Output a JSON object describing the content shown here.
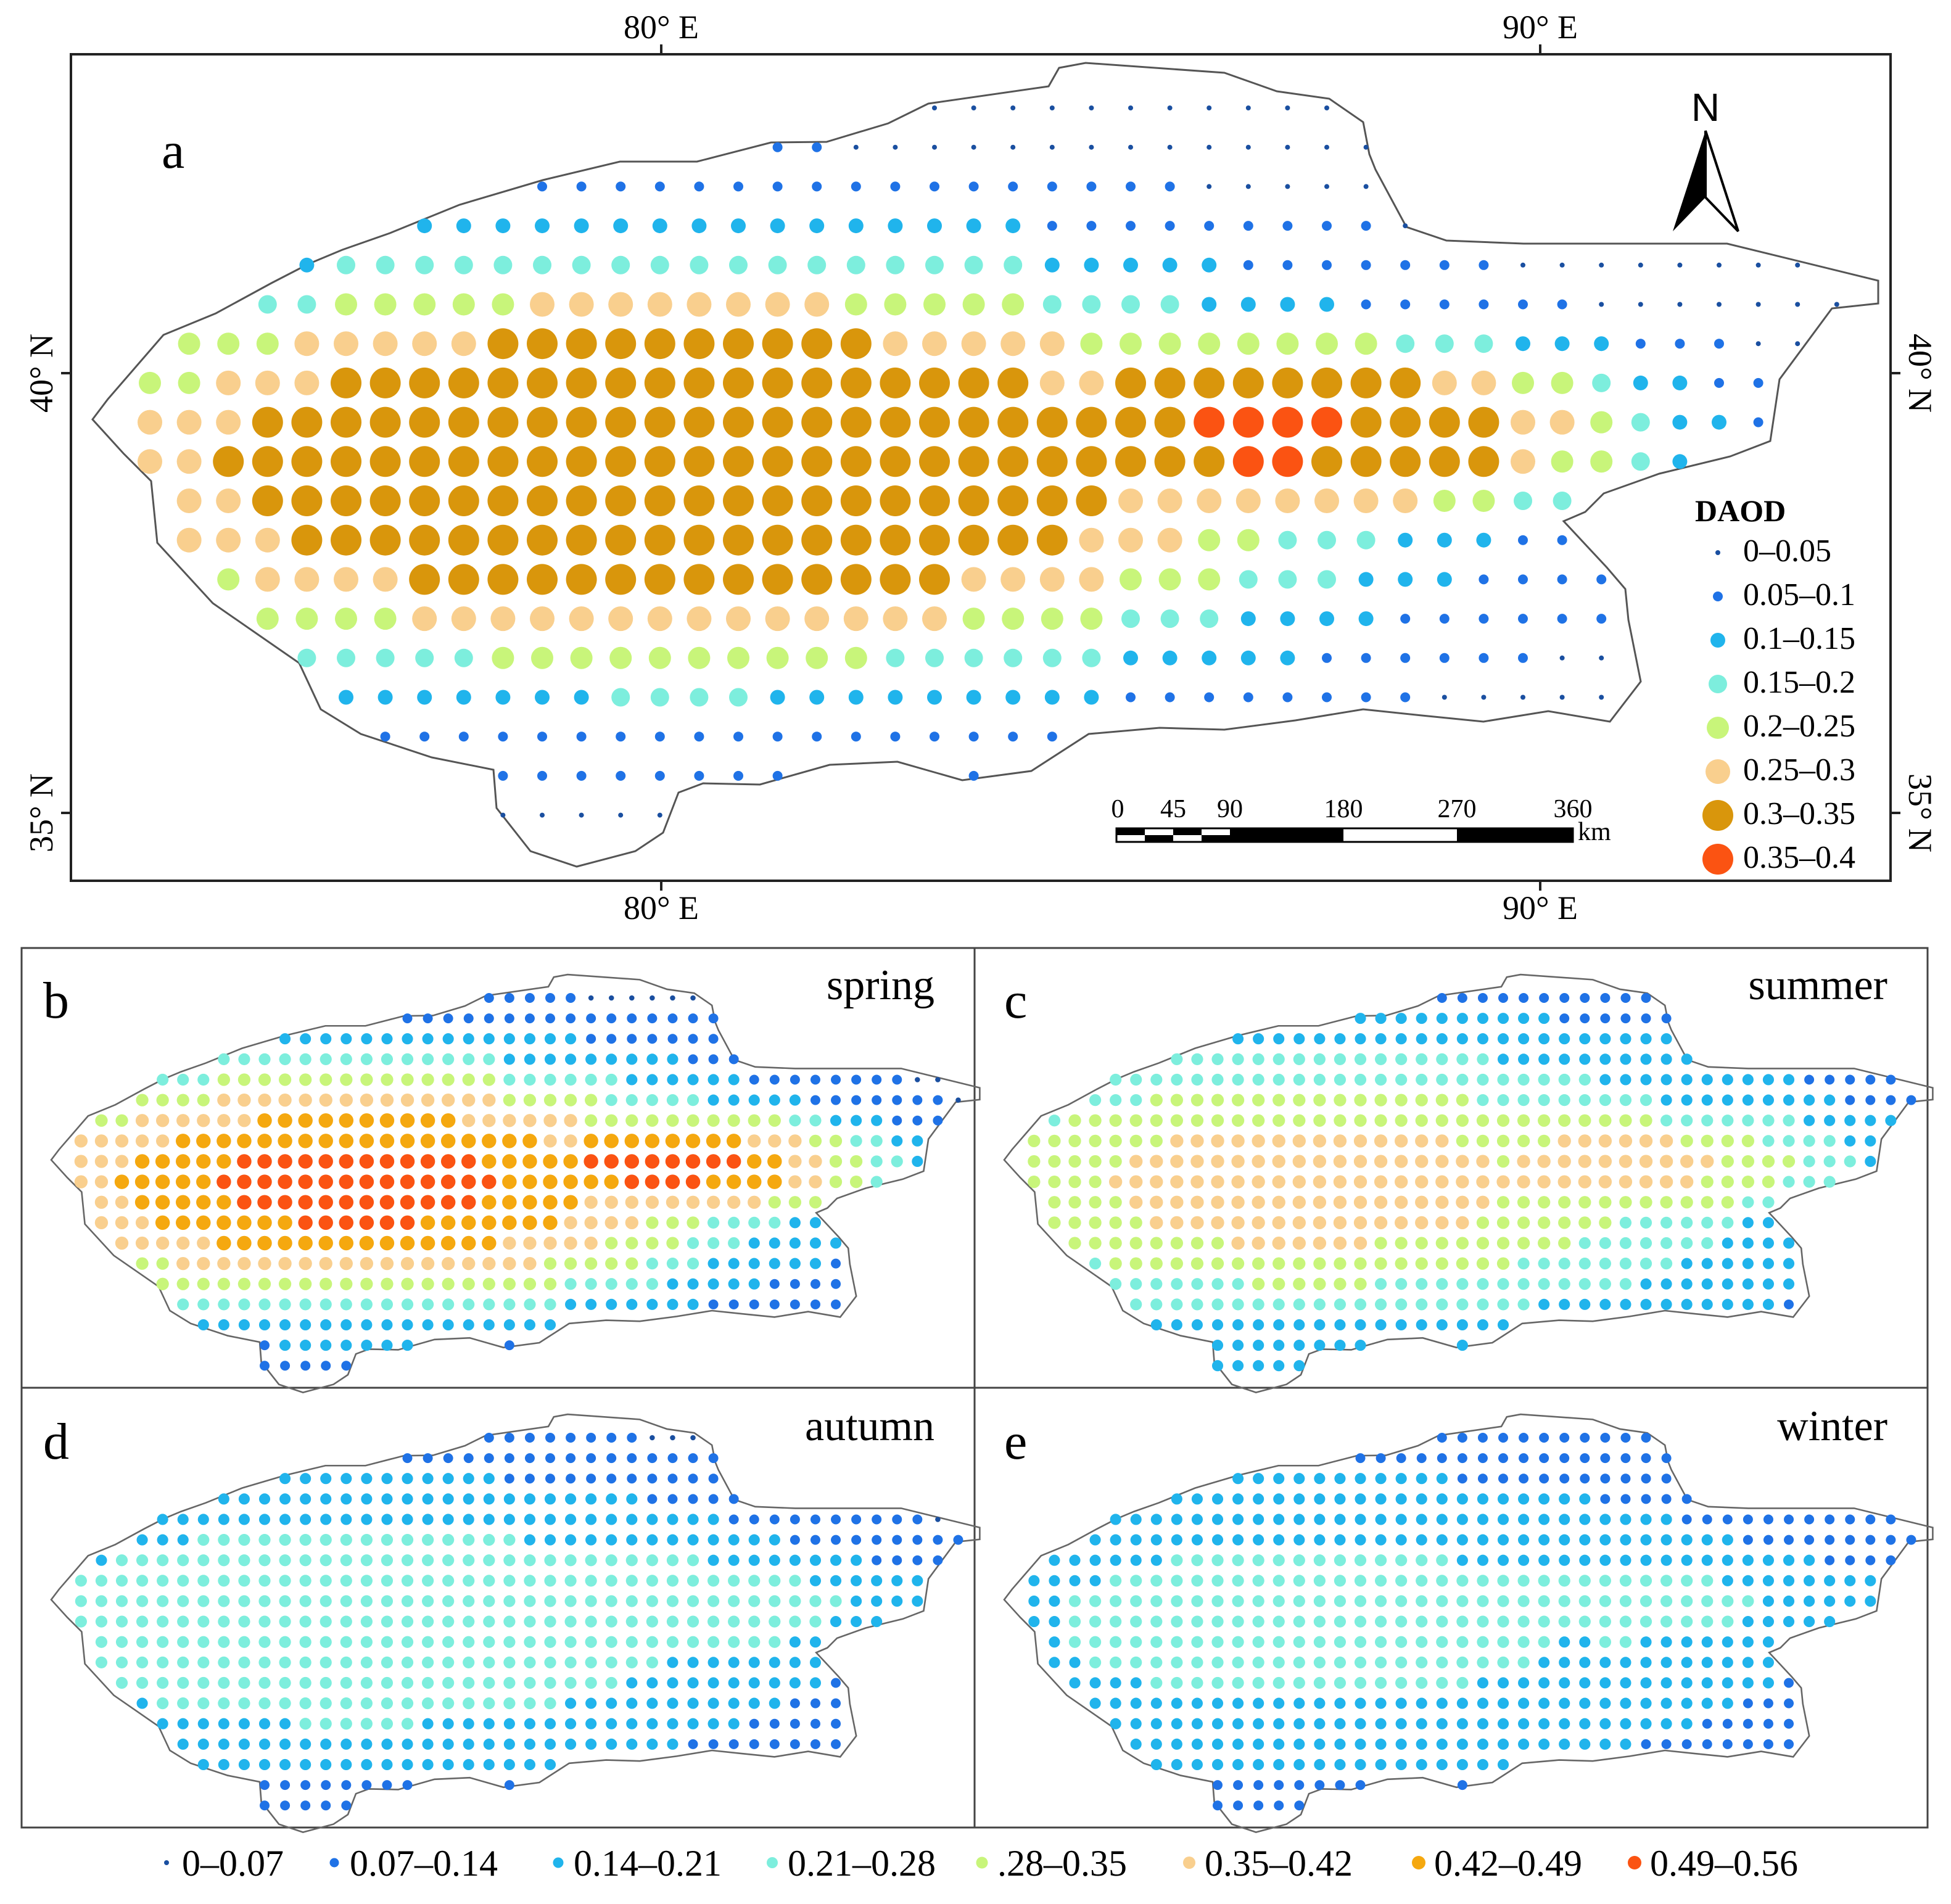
{
  "figure": {
    "panel_a": {
      "label": "a",
      "x_ticks": [
        "80° E",
        "90° E"
      ],
      "y_ticks": [
        "40° N",
        "35° N"
      ],
      "north_label": "N",
      "legend": {
        "title": "DAOD",
        "classes": [
          {
            "label": "0–0.05",
            "color": "#1a4fa0"
          },
          {
            "label": "0.05–0.1",
            "color": "#1f72e6"
          },
          {
            "label": "0.1–0.15",
            "color": "#20b4ec"
          },
          {
            "label": "0.15–0.2",
            "color": "#7deedd"
          },
          {
            "label": "0.2–0.25",
            "color": "#c8f57a"
          },
          {
            "label": "0.25–0.3",
            "color": "#f9cf8e"
          },
          {
            "label": "0.3–0.35",
            "color": "#d9960c"
          },
          {
            "label": "0.35–0.4",
            "color": "#fb5312"
          }
        ]
      },
      "scale_bar": {
        "labels": [
          "0",
          "45",
          "90",
          "180",
          "270",
          "360"
        ],
        "unit": "km"
      }
    },
    "panels_seasonal": [
      {
        "label": "b",
        "season": "spring"
      },
      {
        "label": "c",
        "season": "summer"
      },
      {
        "label": "d",
        "season": "autumn"
      },
      {
        "label": "e",
        "season": "winter"
      }
    ],
    "seasonal_legend": [
      {
        "label": "0–0.07",
        "color": "#1a4fa0"
      },
      {
        "label": "0.07–0.14",
        "color": "#1f72e6"
      },
      {
        "label": "0.14–0.21",
        "color": "#20b4ec"
      },
      {
        "label": "0.21–0.28",
        "color": "#7deedd"
      },
      {
        "label": ".28–0.35",
        "color": "#c8f57a"
      },
      {
        "label": "0.35–0.42",
        "color": "#f9cf8e"
      },
      {
        "label": "0.42–0.49",
        "color": "#f5a80f"
      },
      {
        "label": "0.49–0.56",
        "color": "#fb5312"
      }
    ]
  }
}
